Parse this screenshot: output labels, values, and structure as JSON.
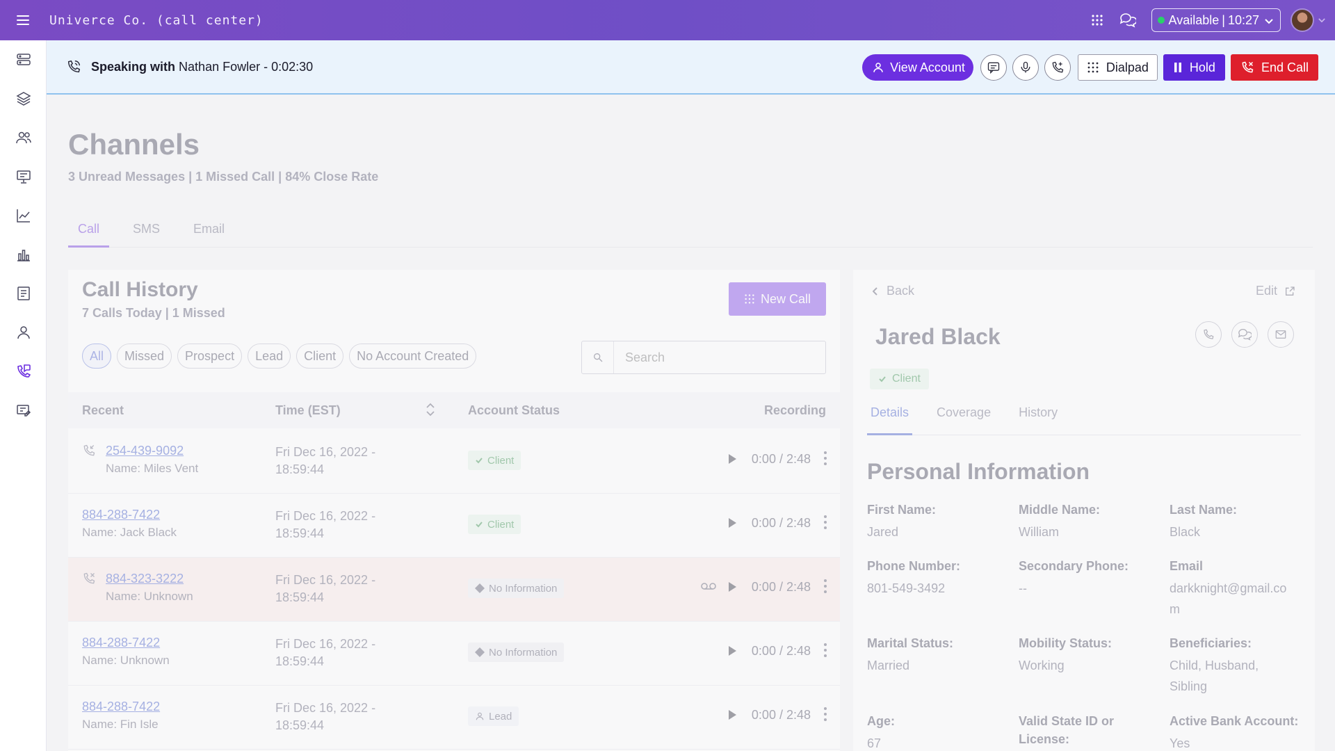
{
  "topbar": {
    "brand": "Univerce Co. (call center)",
    "status": "Available",
    "time": "10:27"
  },
  "callbar": {
    "speaking_label": "Speaking with",
    "caller": "Nathan Fowler - 0:02:30",
    "view_account": "View Account",
    "dialpad": "Dialpad",
    "hold": "Hold",
    "end_call": "End Call"
  },
  "page": {
    "title": "Channels",
    "subtitle": "3 Unread Messages | 1 Missed Call | 84% Close Rate",
    "tabs": [
      "Call",
      "SMS",
      "Email"
    ]
  },
  "call_history": {
    "title": "Call History",
    "subtitle": "7 Calls Today | 1 Missed",
    "new_call": "New Call",
    "filters": [
      "All",
      "Missed",
      "Prospect",
      "Lead",
      "Client",
      "No Account Created"
    ],
    "search_placeholder": "Search",
    "columns": {
      "recent": "Recent",
      "time": "Time (EST)",
      "status": "Account Status",
      "recording": "Recording"
    },
    "rows": [
      {
        "phone": "254-439-9092",
        "name": "Name: Miles Vent",
        "time1": "Fri Dec 16, 2022 -",
        "time2": "18:59:44",
        "status": "Client",
        "duration": "0:00 / 2:48"
      },
      {
        "phone": "884-288-7422",
        "name": "Name: Jack Black",
        "time1": "Fri Dec 16, 2022 -",
        "time2": "18:59:44",
        "status": "Client",
        "duration": "0:00 / 2:48"
      },
      {
        "phone": "884-323-3222",
        "name": "Name: Unknown",
        "time1": "Fri Dec 16, 2022 -",
        "time2": "18:59:44",
        "status": "No Information",
        "duration": "0:00 / 2:48"
      },
      {
        "phone": "884-288-7422",
        "name": "Name: Unknown",
        "time1": "Fri Dec 16, 2022 -",
        "time2": "18:59:44",
        "status": "No Information",
        "duration": "0:00 / 2:48"
      },
      {
        "phone": "884-288-7422",
        "name": "Name: Fin Isle",
        "time1": "Fri Dec 16, 2022 -",
        "time2": "18:59:44",
        "status": "Lead",
        "duration": "0:00 / 2:48"
      }
    ]
  },
  "customer": {
    "back": "Back",
    "edit": "Edit",
    "name": "Jared Black",
    "badge": "Client",
    "tabs": [
      "Details",
      "Coverage",
      "History"
    ],
    "section_title": "Personal Information",
    "fields": {
      "first_name": {
        "label": "First Name:",
        "value": "Jared"
      },
      "middle_name": {
        "label": "Middle Name:",
        "value": "William"
      },
      "last_name": {
        "label": "Last Name:",
        "value": "Black"
      },
      "phone": {
        "label": "Phone Number:",
        "value": "801-549-3492"
      },
      "secondary_phone": {
        "label": "Secondary Phone:",
        "value": "--"
      },
      "email": {
        "label": "Email",
        "value": "darkknight@gmail.com"
      },
      "marital": {
        "label": "Marital Status:",
        "value": "Married"
      },
      "mobility": {
        "label": "Mobility Status:",
        "value": "Working"
      },
      "beneficiaries": {
        "label": "Beneficiaries:",
        "value": "Child, Husband, Sibling"
      },
      "age": {
        "label": "Age:",
        "value": "67"
      },
      "state_id": {
        "label": "Valid State ID or License:",
        "value": ""
      },
      "bank": {
        "label": "Active Bank Account:",
        "value": "Yes"
      }
    }
  },
  "colors": {
    "brand_purple": "#6c2fe0",
    "end_call_red": "#de1f2c",
    "available_green": "#2ad16a"
  }
}
